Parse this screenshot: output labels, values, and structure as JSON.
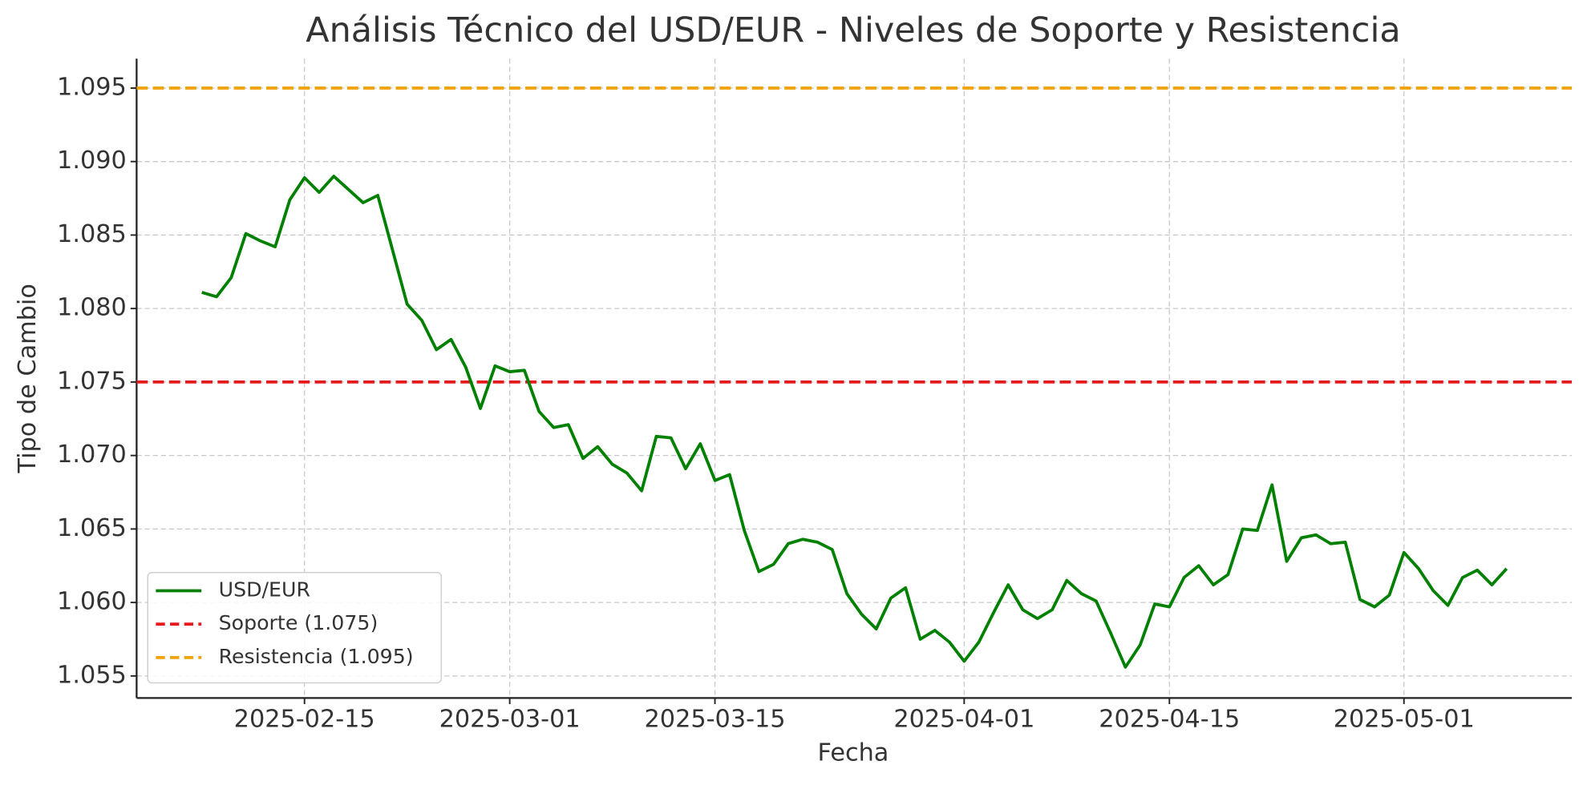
{
  "chart_data": {
    "type": "line",
    "title": "Análisis Técnico del USD/EUR - Niveles de Soporte y Resistencia",
    "xlabel": "Fecha",
    "ylabel": "Tipo de Cambio",
    "x": [
      "2025-02-08",
      "2025-02-09",
      "2025-02-10",
      "2025-02-11",
      "2025-02-12",
      "2025-02-13",
      "2025-02-14",
      "2025-02-15",
      "2025-02-16",
      "2025-02-17",
      "2025-02-18",
      "2025-02-19",
      "2025-02-20",
      "2025-02-21",
      "2025-02-22",
      "2025-02-23",
      "2025-02-24",
      "2025-02-25",
      "2025-02-26",
      "2025-02-27",
      "2025-02-28",
      "2025-03-01",
      "2025-03-02",
      "2025-03-03",
      "2025-03-04",
      "2025-03-05",
      "2025-03-06",
      "2025-03-07",
      "2025-03-08",
      "2025-03-09",
      "2025-03-10",
      "2025-03-11",
      "2025-03-12",
      "2025-03-13",
      "2025-03-14",
      "2025-03-15",
      "2025-03-16",
      "2025-03-17",
      "2025-03-18",
      "2025-03-19",
      "2025-03-20",
      "2025-03-21",
      "2025-03-22",
      "2025-03-23",
      "2025-03-24",
      "2025-03-25",
      "2025-03-26",
      "2025-03-27",
      "2025-03-28",
      "2025-03-29",
      "2025-03-30",
      "2025-03-31",
      "2025-04-01",
      "2025-04-02",
      "2025-04-03",
      "2025-04-04",
      "2025-04-05",
      "2025-04-06",
      "2025-04-07",
      "2025-04-08",
      "2025-04-09",
      "2025-04-10",
      "2025-04-11",
      "2025-04-12",
      "2025-04-13",
      "2025-04-14",
      "2025-04-15",
      "2025-04-16",
      "2025-04-17",
      "2025-04-18",
      "2025-04-19",
      "2025-04-20",
      "2025-04-21",
      "2025-04-22",
      "2025-04-23",
      "2025-04-24",
      "2025-04-25",
      "2025-04-26",
      "2025-04-27",
      "2025-04-28",
      "2025-04-29",
      "2025-04-30",
      "2025-05-01",
      "2025-05-02",
      "2025-05-03",
      "2025-05-04",
      "2025-05-05",
      "2025-05-06",
      "2025-05-07",
      "2025-05-08"
    ],
    "series": [
      {
        "name": "USD/EUR",
        "color": "#008000",
        "values": [
          1.0811,
          1.0808,
          1.0821,
          1.0851,
          1.0846,
          1.0842,
          1.0874,
          1.0889,
          1.0879,
          1.089,
          1.0881,
          1.0872,
          1.0877,
          1.084,
          1.0803,
          1.0792,
          1.0772,
          1.0779,
          1.076,
          1.0732,
          1.0761,
          1.0757,
          1.0758,
          1.073,
          1.0719,
          1.0721,
          1.0698,
          1.0706,
          1.0694,
          1.0688,
          1.0676,
          1.0713,
          1.0712,
          1.0691,
          1.0708,
          1.0683,
          1.0687,
          1.0649,
          1.0621,
          1.0626,
          1.064,
          1.0643,
          1.0641,
          1.0636,
          1.0606,
          1.0592,
          1.0582,
          1.0603,
          1.061,
          1.0575,
          1.0581,
          1.0573,
          1.056,
          1.0573,
          1.0593,
          1.0612,
          1.0595,
          1.0589,
          1.0595,
          1.0615,
          1.0606,
          1.0601,
          1.0579,
          1.0556,
          1.0571,
          1.0599,
          1.0597,
          1.0617,
          1.0625,
          1.0612,
          1.0619,
          1.065,
          1.0649,
          1.068,
          1.0628,
          1.0644,
          1.0646,
          1.064,
          1.0641,
          1.0602,
          1.0597,
          1.0605,
          1.0634,
          1.0623,
          1.0608,
          1.0598,
          1.0617,
          1.0622,
          1.0612,
          1.0623
        ]
      }
    ],
    "hlines": [
      {
        "name": "Soporte (1.075)",
        "value": 1.075,
        "color": "#e41a1c"
      },
      {
        "name": "Resistencia (1.095)",
        "value": 1.095,
        "color": "#f0a30a"
      }
    ],
    "xlim": [
      "2025-02-03T13:12",
      "2025-05-12T10:48"
    ],
    "xticks": [
      "2025-02-15",
      "2025-03-01",
      "2025-03-15",
      "2025-04-01",
      "2025-04-15",
      "2025-05-01"
    ],
    "ylim": [
      1.0535,
      1.097
    ],
    "yticks": [
      1.055,
      {
        "value": 1.06,
        "label": "1.060"
      },
      1.065,
      {
        "value": 1.07,
        "label": "1.070"
      },
      1.075,
      {
        "value": 1.08,
        "label": "1.080"
      },
      1.085,
      {
        "value": 1.09,
        "label": "1.090"
      },
      1.095
    ],
    "grid": true,
    "legend": "lower left"
  }
}
